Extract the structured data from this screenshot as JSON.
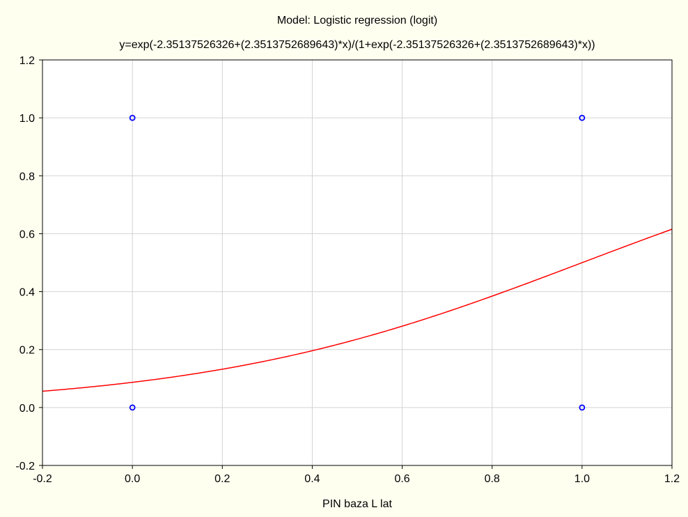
{
  "chart_data": {
    "type": "scatter",
    "title": "Model: Logistic regression (logit)",
    "subtitle": "y=exp(-2.35137526326+(2.3513752689643)*x)/(1+exp(-2.35137526326+(2.3513752689643)*x))",
    "xlabel": "PIN baza L lat",
    "ylabel": "",
    "xlim": [
      -0.2,
      1.2
    ],
    "ylim": [
      -0.2,
      1.2
    ],
    "x_ticks": [
      -0.2,
      0.0,
      0.2,
      0.4,
      0.6,
      0.8,
      1.0,
      1.2
    ],
    "y_ticks": [
      -0.2,
      0.0,
      0.2,
      0.4,
      0.6,
      0.8,
      1.0,
      1.2
    ],
    "x_tick_labels": [
      "-0.2",
      "0.0",
      "0.2",
      "0.4",
      "0.6",
      "0.8",
      "1.0",
      "1.2"
    ],
    "y_tick_labels": [
      "-0.2",
      "0.0",
      "0.2",
      "0.4",
      "0.6",
      "0.8",
      "1.0",
      "1.2"
    ],
    "grid": true,
    "points": [
      {
        "x": 0.0,
        "y": 1.0
      },
      {
        "x": 0.0,
        "y": 0.0
      },
      {
        "x": 1.0,
        "y": 1.0
      },
      {
        "x": 1.0,
        "y": 0.0
      }
    ],
    "curve": {
      "intercept": -2.35137526326,
      "slope": 2.3513752689643
    },
    "colors": {
      "points": "#0000ff",
      "curve": "#ff0000",
      "grid": "#d3d3d3",
      "background": "#fffff0",
      "plot_background": "#ffffff"
    }
  }
}
